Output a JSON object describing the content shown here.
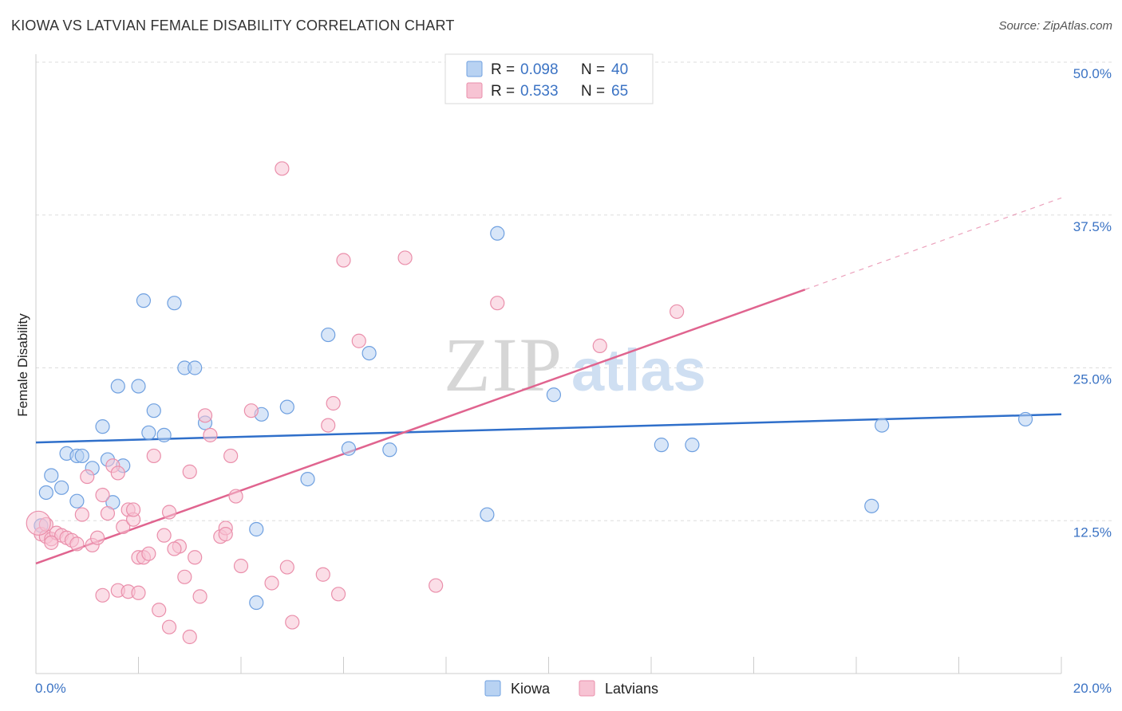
{
  "title": "KIOWA VS LATVIAN FEMALE DISABILITY CORRELATION CHART",
  "source": "Source: ZipAtlas.com",
  "watermark": {
    "zip": "ZIP",
    "atlas": "atlas"
  },
  "legend_top": [
    {
      "r_label": "R = ",
      "r_value": "0.098",
      "n_label": "N = ",
      "n_value": "40",
      "color": "#b8d2f2"
    },
    {
      "r_label": "R = ",
      "r_value": "0.533",
      "n_label": "N = ",
      "n_value": "65",
      "color": "#f7c3d3"
    }
  ],
  "chart_data": {
    "type": "scatter",
    "title": "KIOWA VS LATVIAN FEMALE DISABILITY CORRELATION CHART",
    "xlabel": "",
    "ylabel": "Female Disability",
    "xlim": [
      0,
      20
    ],
    "ylim": [
      0,
      50
    ],
    "x_tick_labels": [
      "0.0%",
      "20.0%"
    ],
    "y_tick_labels": [
      "12.5%",
      "25.0%",
      "37.5%",
      "50.0%"
    ],
    "y_ticks": [
      12.5,
      25.0,
      37.5,
      50.0
    ],
    "grid": true,
    "legend_position": "top-center",
    "series": [
      {
        "name": "Kiowa",
        "color": "#6fa0e0",
        "fill": "#b8d2f2",
        "line_color": "#2f6fca",
        "trend": {
          "x0": 0,
          "y0": 18.9,
          "x1": 20,
          "y1": 21.2
        },
        "points": [
          [
            0.1,
            12.1
          ],
          [
            0.2,
            14.8
          ],
          [
            0.3,
            16.2
          ],
          [
            0.5,
            15.2
          ],
          [
            0.6,
            18.0
          ],
          [
            0.8,
            14.1
          ],
          [
            0.8,
            17.8
          ],
          [
            0.9,
            17.8
          ],
          [
            1.1,
            16.8
          ],
          [
            1.3,
            20.2
          ],
          [
            1.4,
            17.5
          ],
          [
            1.5,
            14.0
          ],
          [
            1.6,
            23.5
          ],
          [
            1.7,
            17.0
          ],
          [
            2.0,
            23.5
          ],
          [
            2.1,
            30.5
          ],
          [
            2.2,
            19.7
          ],
          [
            2.3,
            21.5
          ],
          [
            2.5,
            19.5
          ],
          [
            2.7,
            30.3
          ],
          [
            2.9,
            25.0
          ],
          [
            3.1,
            25.0
          ],
          [
            3.3,
            20.5
          ],
          [
            4.3,
            11.8
          ],
          [
            4.4,
            21.2
          ],
          [
            4.9,
            21.8
          ],
          [
            5.3,
            15.9
          ],
          [
            5.7,
            27.7
          ],
          [
            6.1,
            18.4
          ],
          [
            6.5,
            26.2
          ],
          [
            6.9,
            18.3
          ],
          [
            8.8,
            13.0
          ],
          [
            9.0,
            36.0
          ],
          [
            10.1,
            22.8
          ],
          [
            12.2,
            18.7
          ],
          [
            12.8,
            18.7
          ],
          [
            16.3,
            13.7
          ],
          [
            16.5,
            20.3
          ],
          [
            19.3,
            20.8
          ],
          [
            4.3,
            5.8
          ]
        ]
      },
      {
        "name": "Latvians",
        "color": "#ea8fab",
        "fill": "#f7c3d3",
        "line_color": "#e0648f",
        "trend": {
          "x0": 0,
          "y0": 9.0,
          "x1": 15,
          "y1": 31.4
        },
        "trend_dashed": {
          "x0": 15,
          "y0": 31.4,
          "x1": 20,
          "y1": 38.9
        },
        "points": [
          [
            0.1,
            11.4
          ],
          [
            0.2,
            11.2
          ],
          [
            0.3,
            11.0
          ],
          [
            0.4,
            11.5
          ],
          [
            0.5,
            11.3
          ],
          [
            0.6,
            11.1
          ],
          [
            0.7,
            10.9
          ],
          [
            0.8,
            10.6
          ],
          [
            0.9,
            13.0
          ],
          [
            1.0,
            16.1
          ],
          [
            1.1,
            10.5
          ],
          [
            1.2,
            11.1
          ],
          [
            1.3,
            14.6
          ],
          [
            1.4,
            13.1
          ],
          [
            1.5,
            17.0
          ],
          [
            1.6,
            16.4
          ],
          [
            1.7,
            12.0
          ],
          [
            1.8,
            13.4
          ],
          [
            1.9,
            12.6
          ],
          [
            2.0,
            9.5
          ],
          [
            2.1,
            9.5
          ],
          [
            2.2,
            9.8
          ],
          [
            2.3,
            17.8
          ],
          [
            2.5,
            11.3
          ],
          [
            2.6,
            13.2
          ],
          [
            2.8,
            10.4
          ],
          [
            2.9,
            7.9
          ],
          [
            3.0,
            16.5
          ],
          [
            3.1,
            9.5
          ],
          [
            3.2,
            6.3
          ],
          [
            3.3,
            21.1
          ],
          [
            3.4,
            19.5
          ],
          [
            3.6,
            11.2
          ],
          [
            3.7,
            11.9
          ],
          [
            3.8,
            17.8
          ],
          [
            3.9,
            14.5
          ],
          [
            4.0,
            8.8
          ],
          [
            4.2,
            21.5
          ],
          [
            4.6,
            7.4
          ],
          [
            4.8,
            41.3
          ],
          [
            4.9,
            8.7
          ],
          [
            5.0,
            4.2
          ],
          [
            5.6,
            8.1
          ],
          [
            5.7,
            20.3
          ],
          [
            5.8,
            22.1
          ],
          [
            5.9,
            6.5
          ],
          [
            6.0,
            33.8
          ],
          [
            6.3,
            27.2
          ],
          [
            7.2,
            34.0
          ],
          [
            7.8,
            7.2
          ],
          [
            9.0,
            30.3
          ],
          [
            11.0,
            26.8
          ],
          [
            12.5,
            29.6
          ],
          [
            1.3,
            6.4
          ],
          [
            1.6,
            6.8
          ],
          [
            1.8,
            6.7
          ],
          [
            2.0,
            6.6
          ],
          [
            2.4,
            5.2
          ],
          [
            2.6,
            3.8
          ],
          [
            3.0,
            3.0
          ],
          [
            1.9,
            13.4
          ],
          [
            0.2,
            12.2
          ],
          [
            0.3,
            10.7
          ],
          [
            3.7,
            11.4
          ],
          [
            2.7,
            10.2
          ]
        ]
      }
    ]
  },
  "bottom_legend": [
    {
      "label": "Kiowa",
      "color": "#b8d2f2"
    },
    {
      "label": "Latvians",
      "color": "#f7c3d3"
    }
  ]
}
